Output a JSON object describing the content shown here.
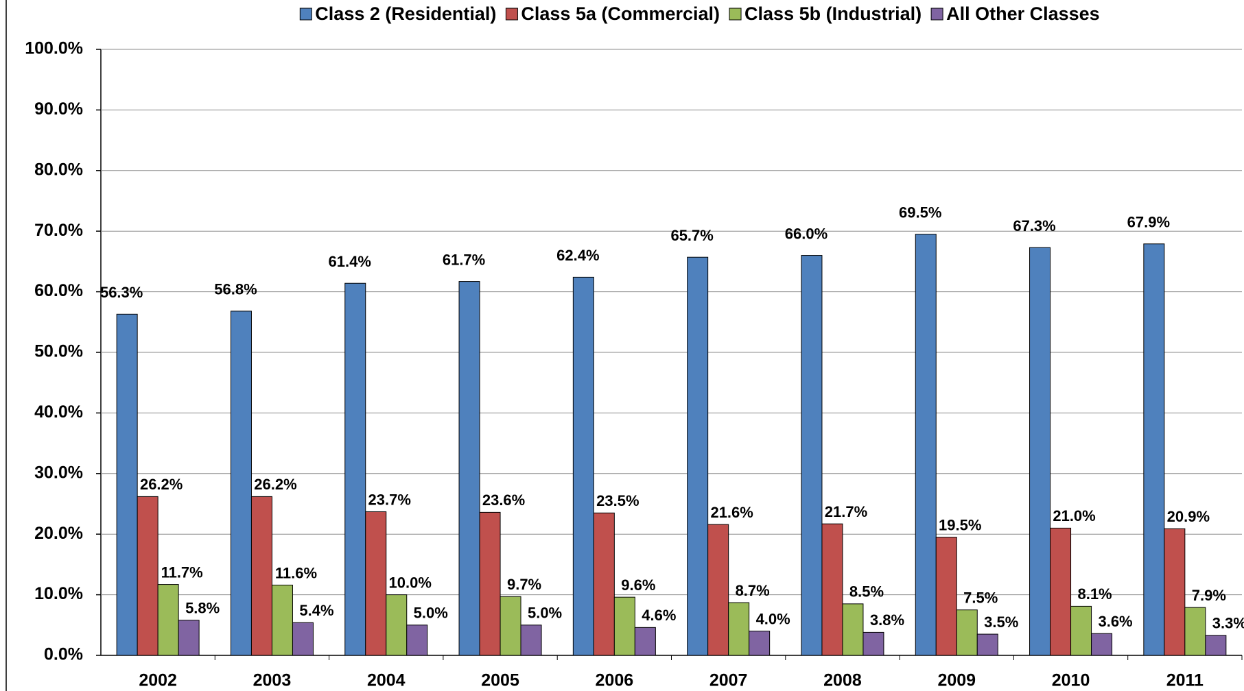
{
  "chart_data": {
    "type": "bar",
    "categories": [
      "2002",
      "2003",
      "2004",
      "2005",
      "2006",
      "2007",
      "2008",
      "2009",
      "2010",
      "2011"
    ],
    "series": [
      {
        "name": "Class 2 (Residential)",
        "color": "#4f81bd",
        "values": [
          56.3,
          56.8,
          61.4,
          61.7,
          62.4,
          65.7,
          66.0,
          69.5,
          67.3,
          67.9
        ],
        "value_labels": [
          "56.3%",
          "56.8%",
          "61.4%",
          "61.7%",
          "62.4%",
          "65.7%",
          "66.0%",
          "69.5%",
          "67.3%",
          "67.9%"
        ]
      },
      {
        "name": "Class 5a (Commercial)",
        "color": "#c0504d",
        "values": [
          26.2,
          26.2,
          23.7,
          23.6,
          23.5,
          21.6,
          21.7,
          19.5,
          21.0,
          20.9
        ],
        "value_labels": [
          "26.2%",
          "26.2%",
          "23.7%",
          "23.6%",
          "23.5%",
          "21.6%",
          "21.7%",
          "19.5%",
          "21.0%",
          "20.9%"
        ]
      },
      {
        "name": "Class 5b (Industrial)",
        "color": "#9bbb59",
        "values": [
          11.7,
          11.6,
          10.0,
          9.7,
          9.6,
          8.7,
          8.5,
          7.5,
          8.1,
          7.9
        ],
        "value_labels": [
          "11.7%",
          "11.6%",
          "10.0%",
          "9.7%",
          "9.6%",
          "8.7%",
          "8.5%",
          "7.5%",
          "8.1%",
          "7.9%"
        ]
      },
      {
        "name": "All Other Classes",
        "color": "#8064a2",
        "values": [
          5.8,
          5.4,
          5.0,
          5.0,
          4.6,
          4.0,
          3.8,
          3.5,
          3.6,
          3.3
        ],
        "value_labels": [
          "5.8%",
          "5.4%",
          "5.0%",
          "5.0%",
          "4.6%",
          "4.0%",
          "3.8%",
          "3.5%",
          "3.6%",
          "3.3%"
        ]
      }
    ],
    "ylim": [
      0,
      100
    ],
    "yticks": [
      {
        "value": 0,
        "label": "0.0%"
      },
      {
        "value": 10,
        "label": "10.0%"
      },
      {
        "value": 20,
        "label": "20.0%"
      },
      {
        "value": 30,
        "label": "30.0%"
      },
      {
        "value": 40,
        "label": "40.0%"
      },
      {
        "value": 50,
        "label": "50.0%"
      },
      {
        "value": 60,
        "label": "60.0%"
      },
      {
        "value": 70,
        "label": "70.0%"
      },
      {
        "value": 80,
        "label": "80.0%"
      },
      {
        "value": 90,
        "label": "90.0%"
      },
      {
        "value": 100,
        "label": "100.0%"
      }
    ],
    "grid": true,
    "legend": "top"
  }
}
